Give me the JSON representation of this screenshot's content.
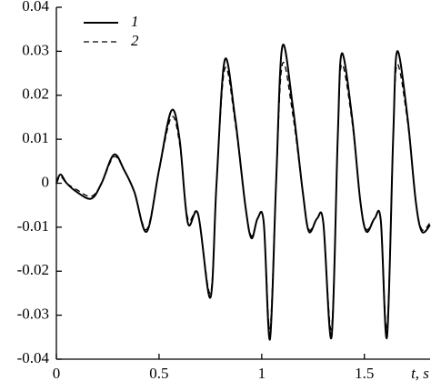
{
  "chart_data": {
    "type": "line",
    "x_label": "t, s",
    "x": [
      0,
      0.02,
      0.05,
      0.1,
      0.17,
      0.22,
      0.28,
      0.33,
      0.38,
      0.44,
      0.5,
      0.56,
      0.6,
      0.64,
      0.69,
      0.75,
      0.78,
      0.82,
      0.87,
      0.92,
      0.95,
      0.98,
      1.01,
      1.04,
      1.07,
      1.1,
      1.15,
      1.2,
      1.23,
      1.27,
      1.3,
      1.34,
      1.37,
      1.39,
      1.44,
      1.48,
      1.51,
      1.55,
      1.58,
      1.61,
      1.64,
      1.66,
      1.71,
      1.75,
      1.78,
      1.82
    ],
    "series": [
      {
        "name": "1",
        "color": "#000000",
        "dash": "solid",
        "values": [
          0,
          0.002,
          0,
          -0.002,
          -0.0035,
          0,
          0.0065,
          0.003,
          -0.002,
          -0.011,
          0.003,
          0.0165,
          0.01,
          -0.009,
          -0.007,
          -0.026,
          0,
          0.028,
          0.015,
          -0.005,
          -0.0125,
          -0.008,
          -0.009,
          -0.0355,
          0,
          0.031,
          0.018,
          -0.002,
          -0.011,
          -0.008,
          -0.009,
          -0.035,
          0.01,
          0.0295,
          0.015,
          -0.004,
          -0.011,
          -0.008,
          -0.0085,
          -0.035,
          0.01,
          0.03,
          0.015,
          -0.004,
          -0.011,
          -0.0095
        ]
      },
      {
        "name": "2",
        "color": "#000000",
        "dash": "dashed",
        "values": [
          0,
          0.0015,
          0,
          -0.0015,
          -0.003,
          0,
          0.006,
          0.003,
          -0.002,
          -0.0105,
          0.003,
          0.015,
          0.009,
          -0.008,
          -0.007,
          -0.025,
          0,
          0.026,
          0.014,
          -0.005,
          -0.012,
          -0.008,
          -0.009,
          -0.033,
          0,
          0.027,
          0.016,
          -0.002,
          -0.0105,
          -0.008,
          -0.009,
          -0.033,
          0.01,
          0.027,
          0.014,
          -0.004,
          -0.0105,
          -0.008,
          -0.0085,
          -0.033,
          0.01,
          0.027,
          0.014,
          -0.004,
          -0.0105,
          -0.009
        ]
      }
    ],
    "xlim": [
      0,
      1.82
    ],
    "xticks": [
      0,
      0.5,
      1,
      1.5
    ],
    "ylim": [
      -0.04,
      0.04
    ],
    "yticks": [
      0.04,
      0.03,
      0.02,
      0.01,
      0,
      -0.01,
      -0.02,
      -0.03,
      -0.04
    ],
    "grid": false,
    "legend": "upper left"
  }
}
